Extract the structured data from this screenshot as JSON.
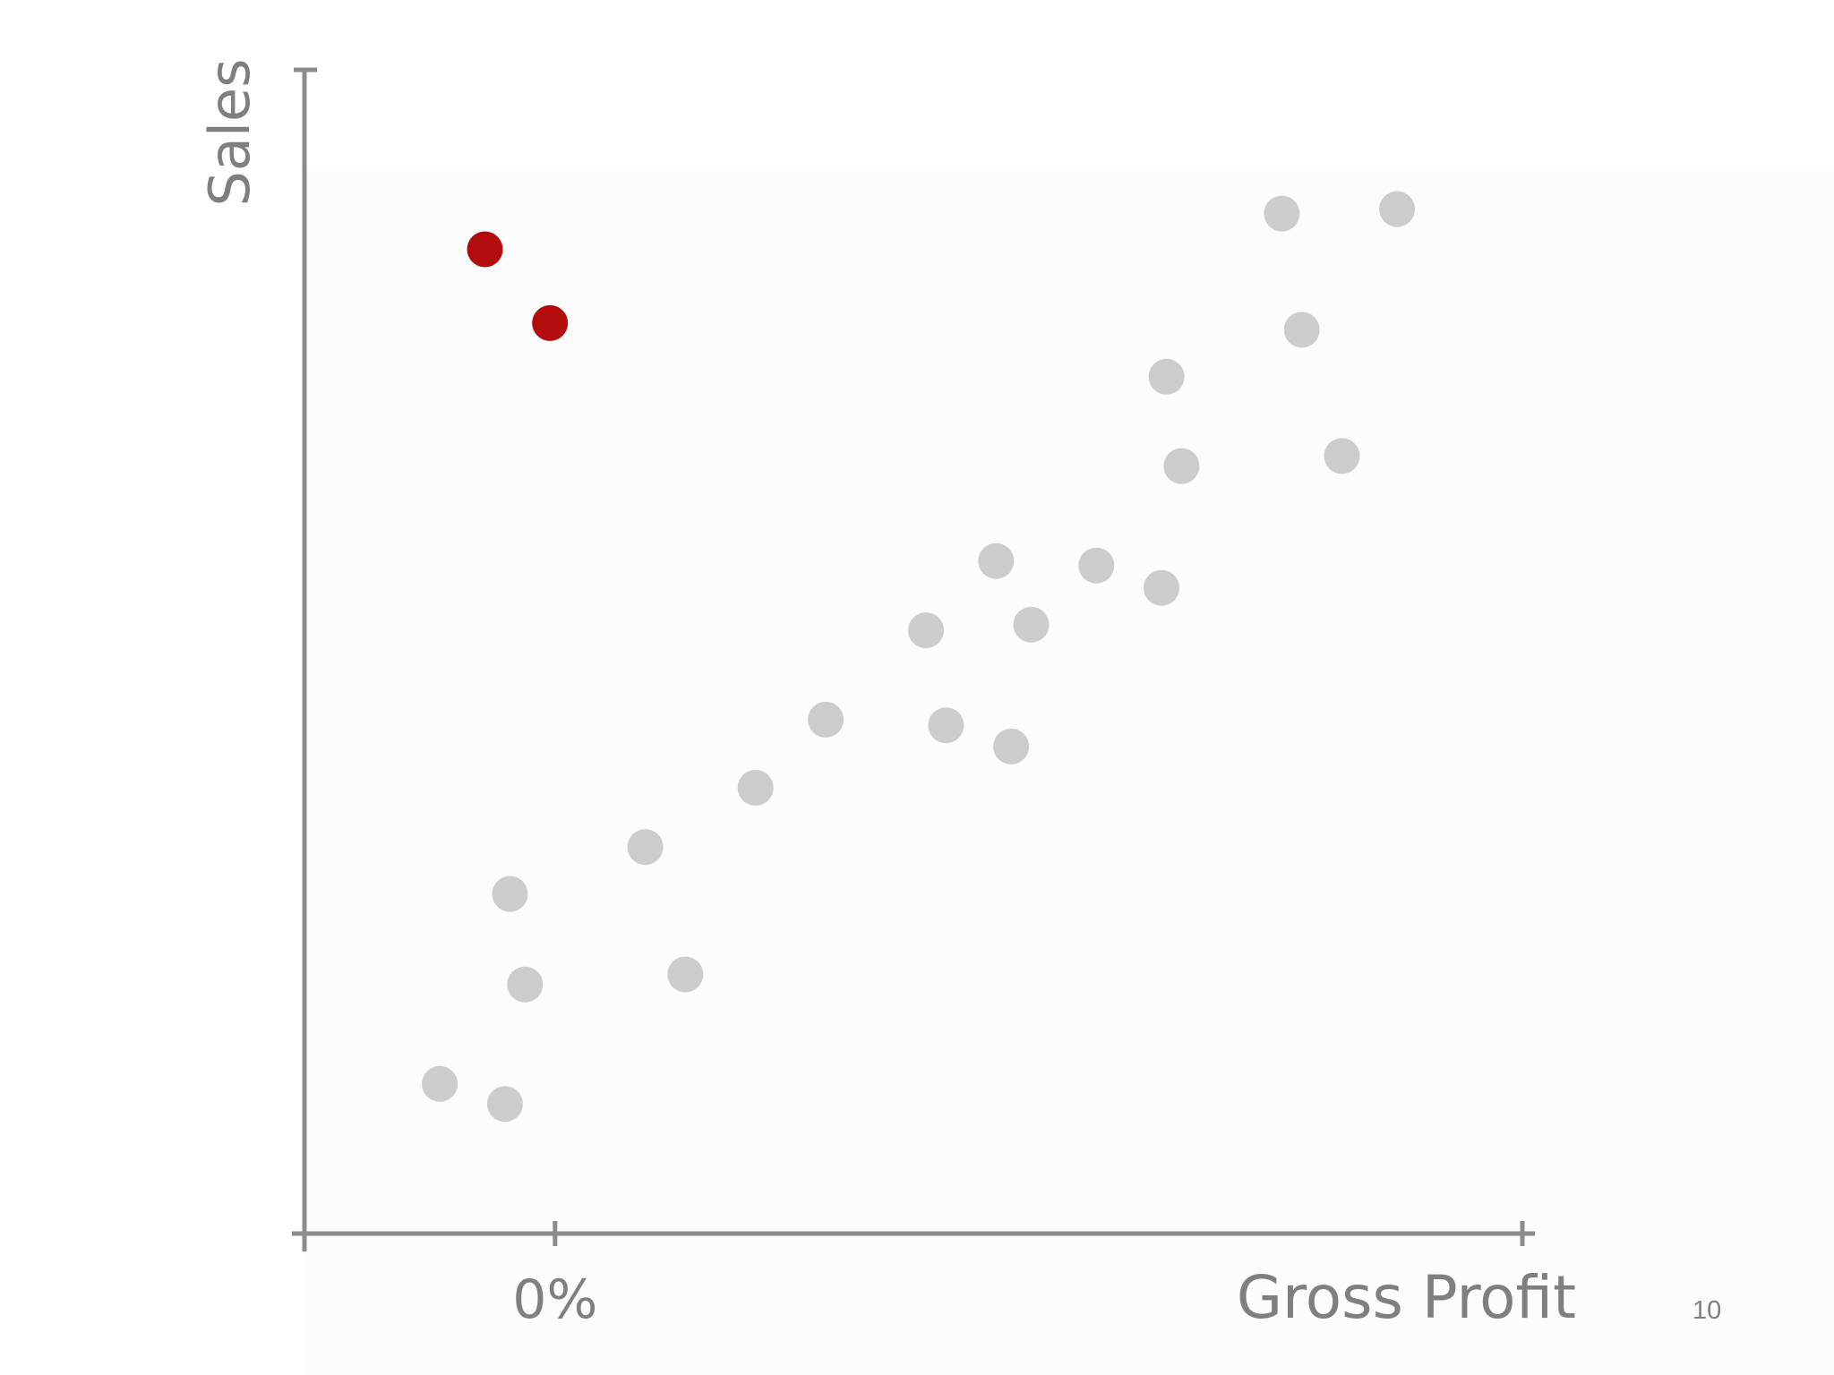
{
  "slide": {
    "page_number": "10"
  },
  "chart_data": {
    "type": "scatter",
    "title": "",
    "xlabel": "Gross Profit",
    "ylabel": "Sales",
    "x_tick_labels": [
      "0%"
    ],
    "xlim": [
      -5,
      19.3
    ],
    "ylim": [
      0,
      100
    ],
    "x_reference": 0,
    "grid": false,
    "legend": "none",
    "colors": {
      "axis": "#8c8c8c",
      "default_point": "#cccccc",
      "highlight_point": "#b30c0c",
      "text": "#7f7f7f"
    },
    "series": [
      {
        "points": [
          {
            "x": -2.3,
            "y": 13.4
          },
          {
            "x": -1.0,
            "y": 11.6
          },
          {
            "x": -0.9,
            "y": 30.4
          },
          {
            "x": -0.6,
            "y": 22.3
          },
          {
            "x": 1.8,
            "y": 34.6
          },
          {
            "x": 2.6,
            "y": 23.2
          },
          {
            "x": 4.0,
            "y": 39.9
          },
          {
            "x": 5.4,
            "y": 46.0
          },
          {
            "x": 7.4,
            "y": 54.0
          },
          {
            "x": 7.8,
            "y": 45.5
          },
          {
            "x": 8.8,
            "y": 60.2
          },
          {
            "x": 9.1,
            "y": 43.6
          },
          {
            "x": 9.5,
            "y": 54.5
          },
          {
            "x": 10.8,
            "y": 59.8
          },
          {
            "x": 12.1,
            "y": 57.8
          },
          {
            "x": 12.2,
            "y": 76.7
          },
          {
            "x": 12.5,
            "y": 68.7
          },
          {
            "x": 14.5,
            "y": 91.3
          },
          {
            "x": 14.9,
            "y": 80.9
          },
          {
            "x": 15.7,
            "y": 69.6
          },
          {
            "x": 16.8,
            "y": 91.7
          }
        ]
      },
      {
        "highlight": true,
        "points": [
          {
            "x": -1.4,
            "y": 88.1
          },
          {
            "x": -0.1,
            "y": 81.5
          }
        ]
      }
    ]
  }
}
